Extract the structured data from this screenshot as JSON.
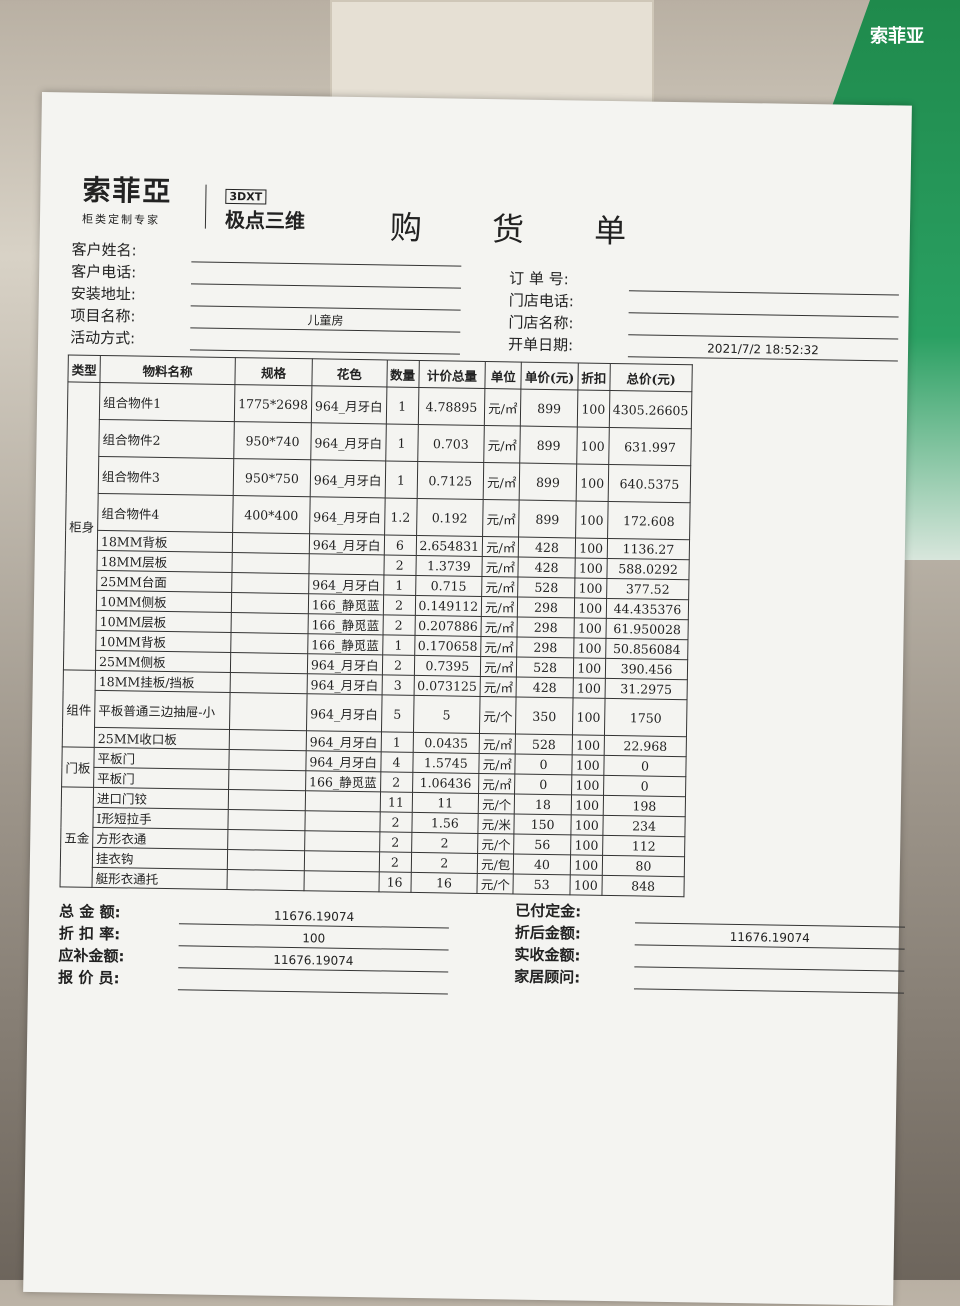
{
  "logo": {
    "brand": "索菲亞",
    "tagline": "柜类定制专家",
    "partner_mark": "3DXT",
    "partner_name": "极点三维"
  },
  "title": "购 货 单",
  "left_fields": [
    {
      "label": "客户姓名:",
      "value": ""
    },
    {
      "label": "客户电话:",
      "value": ""
    },
    {
      "label": "安装地址:",
      "value": ""
    },
    {
      "label": "项目名称:",
      "value": "儿童房"
    },
    {
      "label": "活动方式:",
      "value": ""
    }
  ],
  "right_fields": [
    {
      "label": "订 单 号:",
      "value": ""
    },
    {
      "label": "门店电话:",
      "value": ""
    },
    {
      "label": "门店名称:",
      "value": ""
    },
    {
      "label": "开单日期:",
      "value": "2021/7/2 18:52:32"
    }
  ],
  "table": {
    "headers": [
      "类型",
      "物料名称",
      "规格",
      "花色",
      "数量",
      "计价总量",
      "单位",
      "单价(元)",
      "折扣",
      "总价(元)"
    ],
    "groups": [
      {
        "type": "柜身",
        "rows": [
          [
            "组合物件1",
            "1775*2698",
            "964_月牙白",
            "1",
            "4.78895",
            "元/㎡",
            "899",
            "100",
            "4305.26605"
          ],
          [
            "组合物件2",
            "950*740",
            "964_月牙白",
            "1",
            "0.703",
            "元/㎡",
            "899",
            "100",
            "631.997"
          ],
          [
            "组合物件3",
            "950*750",
            "964_月牙白",
            "1",
            "0.7125",
            "元/㎡",
            "899",
            "100",
            "640.5375"
          ],
          [
            "组合物件4",
            "400*400",
            "964_月牙白",
            "1.2",
            "0.192",
            "元/㎡",
            "899",
            "100",
            "172.608"
          ],
          [
            "18MM背板",
            "",
            "964_月牙白",
            "6",
            "2.654831",
            "元/㎡",
            "428",
            "100",
            "1136.27"
          ],
          [
            "18MM层板",
            "",
            "",
            "2",
            "1.3739",
            "元/㎡",
            "428",
            "100",
            "588.0292"
          ],
          [
            "25MM台面",
            "",
            "964_月牙白",
            "1",
            "0.715",
            "元/㎡",
            "528",
            "100",
            "377.52"
          ],
          [
            "10MM侧板",
            "",
            "166_静觅蓝",
            "2",
            "0.149112",
            "元/㎡",
            "298",
            "100",
            "44.435376"
          ],
          [
            "10MM层板",
            "",
            "166_静觅蓝",
            "2",
            "0.207886",
            "元/㎡",
            "298",
            "100",
            "61.950028"
          ],
          [
            "10MM背板",
            "",
            "166_静觅蓝",
            "1",
            "0.170658",
            "元/㎡",
            "298",
            "100",
            "50.856084"
          ],
          [
            "25MM侧板",
            "",
            "964_月牙白",
            "2",
            "0.7395",
            "元/㎡",
            "528",
            "100",
            "390.456"
          ]
        ]
      },
      {
        "type": "组件",
        "rows": [
          [
            "18MM挂板/挡板",
            "",
            "964_月牙白",
            "3",
            "0.073125",
            "元/㎡",
            "428",
            "100",
            "31.2975"
          ],
          [
            "平板普通三边抽屉-小",
            "",
            "964_月牙白",
            "5",
            "5",
            "元/个",
            "350",
            "100",
            "1750"
          ],
          [
            "25MM收口板",
            "",
            "964_月牙白",
            "1",
            "0.0435",
            "元/㎡",
            "528",
            "100",
            "22.968"
          ]
        ]
      },
      {
        "type": "门板",
        "rows": [
          [
            "平板门",
            "",
            "964_月牙白",
            "4",
            "1.5745",
            "元/㎡",
            "0",
            "100",
            "0"
          ],
          [
            "平板门",
            "",
            "166_静觅蓝",
            "2",
            "1.06436",
            "元/㎡",
            "0",
            "100",
            "0"
          ]
        ]
      },
      {
        "type": "五金",
        "rows": [
          [
            "进口门铰",
            "",
            "",
            "11",
            "11",
            "元/个",
            "18",
            "100",
            "198"
          ],
          [
            "I形短拉手",
            "",
            "",
            "2",
            "1.56",
            "元/米",
            "150",
            "100",
            "234"
          ],
          [
            "方形衣通",
            "",
            "",
            "2",
            "2",
            "元/个",
            "56",
            "100",
            "112"
          ],
          [
            "挂衣钩",
            "",
            "",
            "2",
            "2",
            "元/包",
            "40",
            "100",
            "80"
          ],
          [
            "艇形衣通托",
            "",
            "",
            "16",
            "16",
            "元/个",
            "53",
            "100",
            "848"
          ]
        ]
      }
    ]
  },
  "summary_left": [
    {
      "label": "总 金 额:",
      "value": "11676.19074"
    },
    {
      "label": "折 扣 率:",
      "value": "100"
    },
    {
      "label": "应补金额:",
      "value": "11676.19074"
    },
    {
      "label": "报 价 员:",
      "value": ""
    }
  ],
  "summary_right": [
    {
      "label": "已付定金:",
      "value": ""
    },
    {
      "label": "折后金额:",
      "value": "11676.19074"
    },
    {
      "label": "实收金额:",
      "value": ""
    },
    {
      "label": "家居顾问:",
      "value": ""
    }
  ],
  "background_sign": "索菲亚"
}
